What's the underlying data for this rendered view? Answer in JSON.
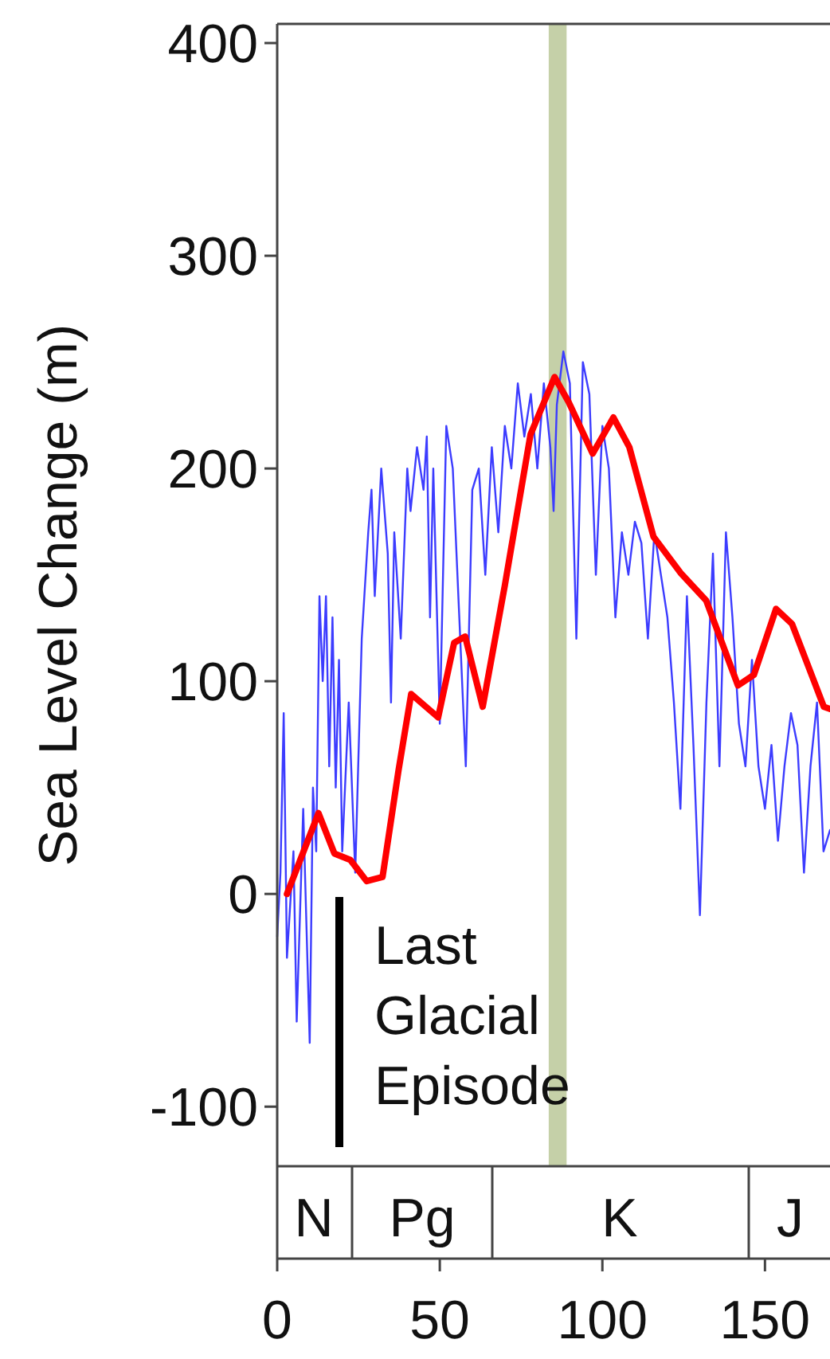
{
  "chart_data": {
    "type": "line",
    "ylabel": "Sea Level Change (m)",
    "xlim": [
      0,
      170
    ],
    "ylim": [
      -128,
      409
    ],
    "xticks": [
      0,
      50,
      100,
      150
    ],
    "yticks": [
      -100,
      0,
      100,
      200,
      300,
      400
    ],
    "grid": false,
    "series": [
      {
        "color": "#3c3cff",
        "x": [
          0,
          1,
          2,
          3,
          5,
          6,
          8,
          10,
          11,
          12,
          13,
          14,
          15,
          16,
          17,
          18,
          19,
          20,
          22,
          24,
          26,
          28,
          29,
          30,
          32,
          34,
          35,
          36,
          38,
          40,
          41,
          43,
          45,
          46,
          47,
          48,
          50,
          52,
          54,
          56,
          58,
          60,
          62,
          64,
          66,
          68,
          70,
          72,
          74,
          76,
          78,
          80,
          82,
          84,
          85,
          86,
          88,
          90,
          92,
          94,
          96,
          98,
          100,
          102,
          104,
          106,
          108,
          110,
          112,
          114,
          116,
          118,
          120,
          122,
          124,
          126,
          128,
          130,
          132,
          134,
          136,
          138,
          140,
          142,
          144,
          146,
          148,
          150,
          152,
          154,
          156,
          158,
          160,
          162,
          164,
          166,
          168,
          170
        ],
        "values": [
          -20,
          10,
          85,
          -30,
          20,
          -60,
          40,
          -70,
          50,
          20,
          140,
          100,
          140,
          60,
          130,
          50,
          110,
          20,
          90,
          10,
          120,
          170,
          190,
          140,
          200,
          160,
          90,
          170,
          120,
          200,
          180,
          210,
          190,
          215,
          130,
          200,
          80,
          220,
          200,
          130,
          60,
          190,
          200,
          150,
          210,
          170,
          220,
          200,
          240,
          215,
          235,
          200,
          240,
          210,
          180,
          230,
          255,
          240,
          120,
          250,
          235,
          150,
          220,
          200,
          130,
          170,
          150,
          175,
          165,
          120,
          170,
          150,
          130,
          90,
          40,
          140,
          70,
          -10,
          90,
          160,
          60,
          170,
          130,
          80,
          60,
          110,
          60,
          40,
          70,
          25,
          60,
          85,
          70,
          10,
          60,
          90,
          20,
          30
        ]
      },
      {
        "color": "#ff0000",
        "x": [
          3,
          12.7,
          17.6,
          22.5,
          27.5,
          32.4,
          37.3,
          41.2,
          49.5,
          54.4,
          57.8,
          63.2,
          70,
          77.9,
          85.3,
          89.7,
          97,
          103.4,
          108.3,
          115.7,
          124,
          131.9,
          141.7,
          146.6,
          153.4,
          158.3,
          168.1,
          170
        ],
        "values": [
          0,
          38,
          19,
          16,
          6,
          8,
          58,
          94,
          83,
          118,
          121,
          88,
          145,
          216,
          243,
          231,
          207,
          224,
          210,
          168,
          151,
          138,
          98,
          103,
          134,
          127,
          88,
          87
        ]
      }
    ],
    "bands": [
      {
        "axis": "x",
        "from": 83.5,
        "to": 89,
        "color": "#c5d0a8"
      }
    ],
    "annotations": [
      "Last Glacial Episode",
      "N",
      "Pg",
      "K",
      "J"
    ]
  }
}
